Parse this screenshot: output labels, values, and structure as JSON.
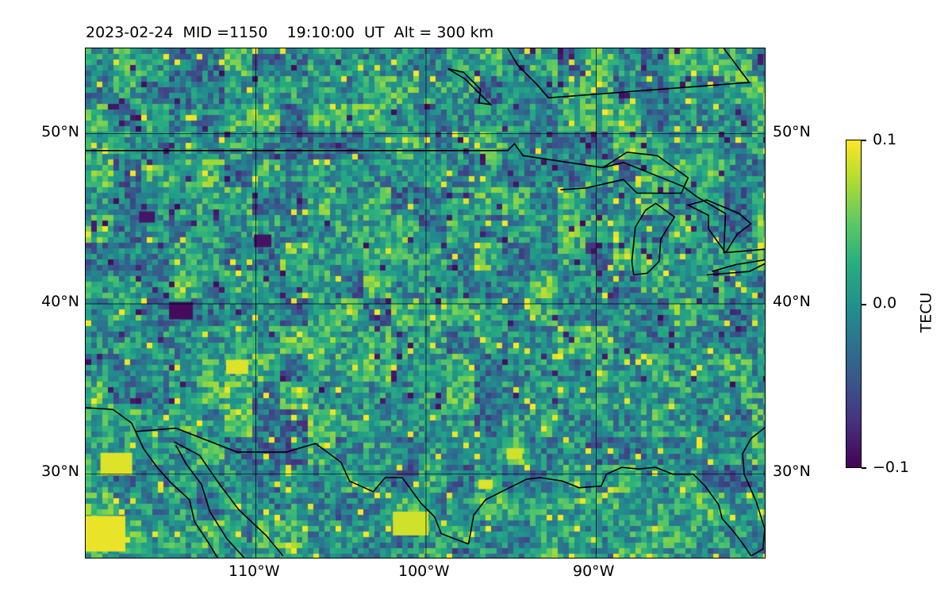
{
  "title": "2023-02-24  MID =1150    19:10:00  UT  Alt = 300 km",
  "map": {
    "projection": "PlateCarree",
    "lon_range": [
      -120,
      -80
    ],
    "lat_range": [
      25,
      55
    ],
    "lon_ticks": [
      {
        "value": -110,
        "label": "110°W"
      },
      {
        "value": -100,
        "label": "100°W"
      },
      {
        "value": -90,
        "label": "90°W"
      }
    ],
    "lat_ticks": [
      {
        "value": 50,
        "label": "50°N"
      },
      {
        "value": 40,
        "label": "40°N"
      },
      {
        "value": 30,
        "label": "30°N"
      }
    ],
    "field": "TEC perturbation (viridis), noisy mosaic",
    "coastlines": true,
    "borders": true
  },
  "colorbar": {
    "label": "TECU",
    "min": -0.1,
    "max": 0.1,
    "ticks": [
      {
        "value": 0.1,
        "label": "0.1"
      },
      {
        "value": 0.0,
        "label": "0.0"
      },
      {
        "value": -0.1,
        "label": "−0.1"
      }
    ],
    "colormap": "viridis"
  }
}
